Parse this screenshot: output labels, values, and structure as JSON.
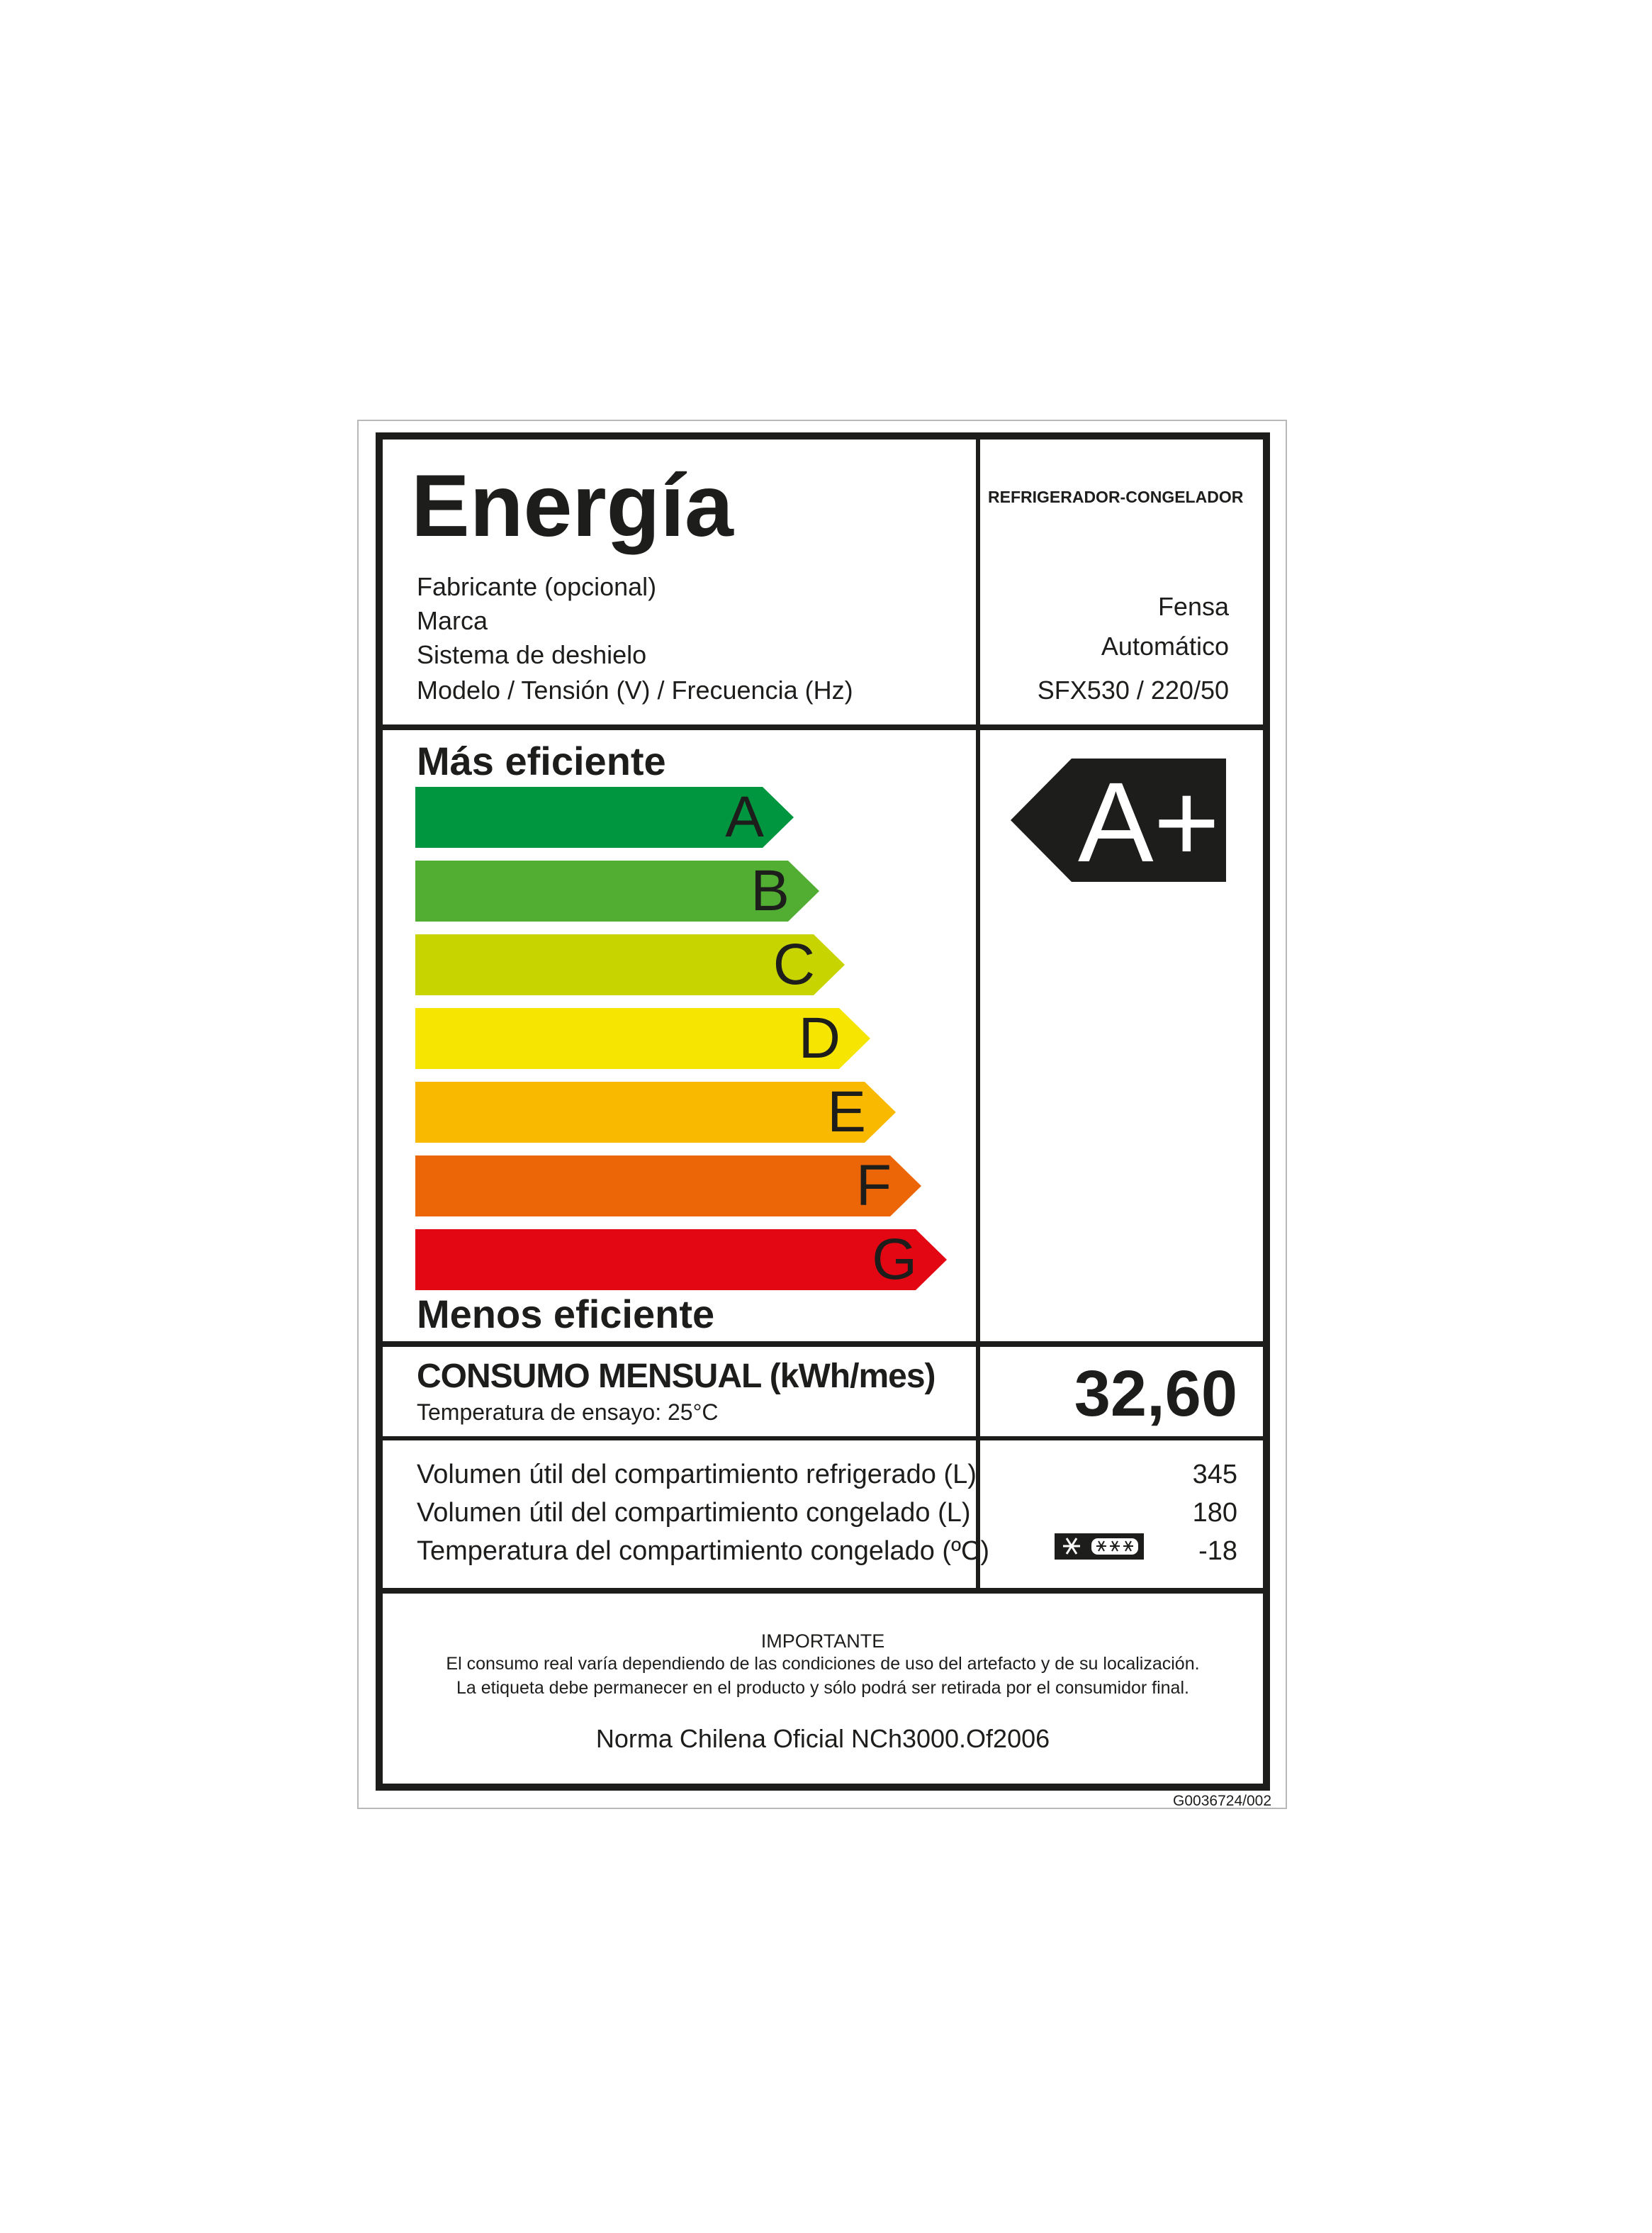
{
  "header": {
    "title": "Energía",
    "appliance_type": "REFRIGERADOR-CONGELADOR",
    "fields": [
      {
        "label": "Fabricante (opcional)",
        "value": ""
      },
      {
        "label": "Marca",
        "value": "Fensa"
      },
      {
        "label": "Sistema de deshielo",
        "value": "Automático"
      },
      {
        "label": "Modelo / Tensión (V) / Frecuencia (Hz)",
        "value": "SFX530 / 220/50"
      }
    ]
  },
  "scale": {
    "top_label": "Más eficiente",
    "bottom_label": "Menos eficiente",
    "classes": [
      {
        "letter": "A",
        "color": "#009640"
      },
      {
        "letter": "B",
        "color": "#52ae32"
      },
      {
        "letter": "C",
        "color": "#c8d400"
      },
      {
        "letter": "D",
        "color": "#f5e500"
      },
      {
        "letter": "E",
        "color": "#f9b900"
      },
      {
        "letter": "F",
        "color": "#ec6608"
      },
      {
        "letter": "G",
        "color": "#e30613"
      }
    ],
    "rating": "A+",
    "rating_color": "#1d1d1b"
  },
  "consumption": {
    "title": "CONSUMO MENSUAL (kWh/mes)",
    "subtitle": "Temperatura de ensayo: 25°C",
    "value": "32,60"
  },
  "volumes": [
    {
      "label": "Volumen útil del compartimiento refrigerado (L)",
      "value": "345"
    },
    {
      "label": "Volumen útil del compartimiento congelado (L)",
      "value": "180"
    },
    {
      "label": "Temperatura del compartimiento congelado (ºC)",
      "value": "-18",
      "icon": "freezer-star-rating-icon"
    }
  ],
  "footer": {
    "heading": "IMPORTANTE",
    "line1": "El consumo real varía dependiendo de las condiciones de uso del artefacto y de su localización.",
    "line2": "La etiqueta debe permanecer en el producto y sólo podrá ser retirada por el consumidor final.",
    "norm": "Norma Chilena Oficial NCh3000.Of2006",
    "code": "G0036724/002"
  }
}
